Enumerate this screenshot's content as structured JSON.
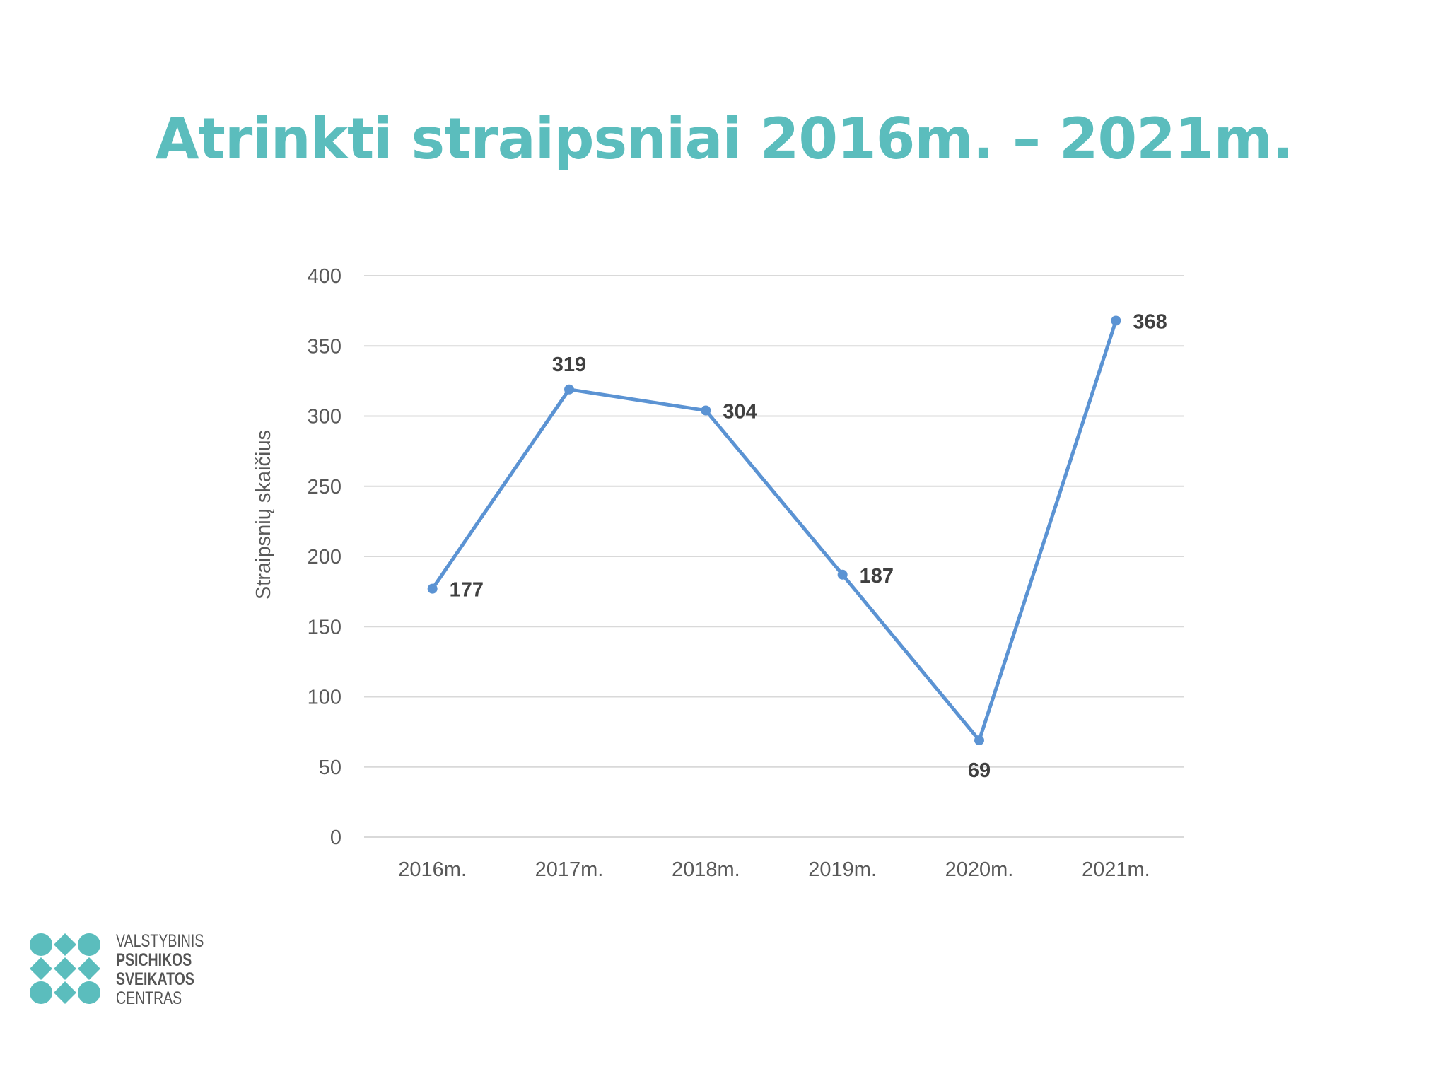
{
  "slide": {
    "title": "Atrinkti straipsniai 2016m. – 2021m."
  },
  "chart_data": {
    "type": "line",
    "categories": [
      "2016m.",
      "2017m.",
      "2018m.",
      "2019m.",
      "2020m.",
      "2021m."
    ],
    "series": [
      {
        "values": [
          177,
          319,
          304,
          187,
          69,
          368
        ]
      }
    ],
    "title": "",
    "xlabel": "",
    "ylabel": "Straipsnių skaičius",
    "ylim": [
      0,
      400
    ],
    "yticks": [
      0,
      50,
      100,
      150,
      200,
      250,
      300,
      350,
      400
    ],
    "grid": true,
    "legend": "none",
    "data_labels": true,
    "line_color": "#5b93d3",
    "gridline_color": "#d9d9d9",
    "label_color": "#404040",
    "tick_color": "#595959"
  },
  "logo": {
    "lines": [
      "VALSTYBINIS",
      "PSICHIKOS",
      "SVEIKATOS",
      "CENTRAS"
    ],
    "color": "#5bbdbd"
  }
}
